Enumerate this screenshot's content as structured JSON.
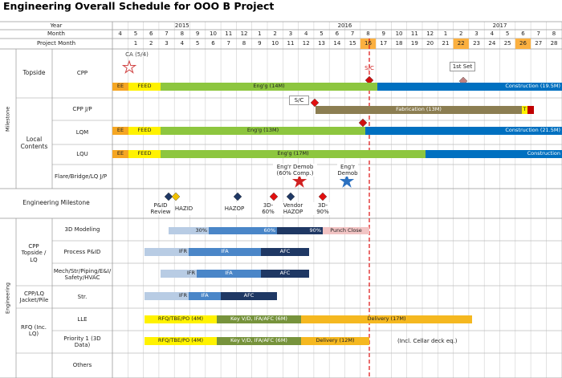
{
  "title": "Engineering Overall Schedule for OOO B Project",
  "header": {
    "year_label": "Year",
    "month_label": "Month",
    "project_month_label": "Project Month",
    "years": [
      "2015",
      "2016",
      "2017"
    ],
    "months": [
      4,
      5,
      6,
      7,
      8,
      9,
      10,
      11,
      12,
      1,
      2,
      3,
      4,
      5,
      6,
      7,
      8,
      9,
      10,
      11,
      12,
      1,
      2,
      3,
      4,
      5,
      6,
      7,
      8
    ],
    "project_months": [
      1,
      2,
      3,
      4,
      5,
      6,
      7,
      8,
      9,
      10,
      11,
      12,
      13,
      14,
      15,
      16,
      17,
      18,
      19,
      20,
      21,
      22,
      23,
      24,
      25,
      26,
      27,
      28
    ]
  },
  "milestone": {
    "label": "Milestone",
    "topside": "Topside",
    "local_contents": "Local Contents",
    "rows": [
      {
        "label": "CPP",
        "bars": [
          "EE",
          "FEED",
          "Eng'g (14M)",
          "Construction (19.5M)"
        ],
        "notes": [
          "CA (5/4)",
          "S/C",
          "1st Set"
        ]
      },
      {
        "label": "CPP J/P",
        "bars": [
          "Fabrication (13M)",
          "T"
        ],
        "notes": [
          "S/C"
        ]
      },
      {
        "label": "LQM",
        "bars": [
          "EE",
          "FEED",
          "Eng'g (13M)",
          "Construction (21.5M)"
        ]
      },
      {
        "label": "LQU",
        "bars": [
          "EE",
          "FEED",
          "Eng'g (17M)",
          "Construction"
        ]
      },
      {
        "label": "Flare/Bridge/LQ J/P",
        "notes": [
          "Eng'r Demob (60% Comp.)",
          "Eng'r Demob"
        ]
      }
    ]
  },
  "engineering_milestone": {
    "label": "Engineering Milestone",
    "items": [
      "P&ID Review",
      "HAZID",
      "HAZOP",
      "3D-60%",
      "Vendor HAZOP",
      "3D-90%"
    ]
  },
  "engineering": {
    "label": "Engineering",
    "groups": [
      "CPP Topside / LQ",
      "CPP/LQ Jacket/Pile",
      "RFQ (Inc. LQ)"
    ],
    "rows": [
      {
        "label": "3D Modeling",
        "bars": [
          "30%",
          "60%",
          "90%",
          "Punch Close"
        ]
      },
      {
        "label": "Process P&ID",
        "bars": [
          "IFR",
          "IFA",
          "AFC"
        ]
      },
      {
        "label": "Mech/Str/Piping/E&I/ Safety/HVAC",
        "bars": [
          "IFR",
          "IFA",
          "AFC"
        ]
      },
      {
        "label": "Str.",
        "bars": [
          "IFR",
          "IFA",
          "AFC"
        ]
      },
      {
        "label": "LLE",
        "bars": [
          "RFQ/TBE/PO (4M)",
          "Key V/D, IFA/AFC (6M)",
          "Delivery (17M)"
        ]
      },
      {
        "label": "Priority 1 (3D Data)",
        "bars": [
          "RFQ/TBE/PO (4M)",
          "Key V/D, IFA/AFC (6M)",
          "Delivery (12M)"
        ],
        "notes": [
          "(Incl. Cellar deck eq.)"
        ]
      },
      {
        "label": "Others"
      }
    ]
  }
}
